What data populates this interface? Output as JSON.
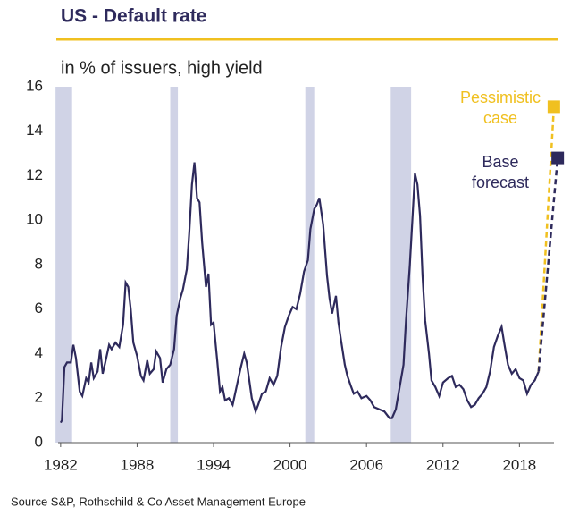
{
  "chart_data": {
    "type": "line",
    "title": "US - Default rate",
    "subtitle": "in % of issuers, high yield",
    "source": "Source S&P, Rothschild & Co Asset Management  Europe",
    "xlim": [
      1981.8,
      2021.2
    ],
    "xticks": [
      1982,
      1988,
      1994,
      2000,
      2006,
      2012,
      2018
    ],
    "ylim": [
      0,
      16
    ],
    "yticks": [
      0,
      2,
      4,
      6,
      8,
      10,
      12,
      14,
      16
    ],
    "recessions": [
      [
        1981.6,
        1982.9
      ],
      [
        1990.6,
        1991.2
      ],
      [
        2001.2,
        2001.9
      ],
      [
        2007.9,
        2009.5
      ]
    ],
    "recession_color": "#d0d3e6",
    "series": [
      {
        "color": "#2e2a5c",
        "dashed": false,
        "x": [
          1982.0,
          1982.1,
          1982.3,
          1982.5,
          1982.8,
          1983.0,
          1983.2,
          1983.5,
          1983.7,
          1984.0,
          1984.2,
          1984.4,
          1984.6,
          1984.9,
          1985.1,
          1985.3,
          1985.5,
          1985.8,
          1986.0,
          1986.3,
          1986.6,
          1986.9,
          1987.1,
          1987.3,
          1987.5,
          1987.7,
          1988.0,
          1988.3,
          1988.5,
          1988.8,
          1989.0,
          1989.3,
          1989.5,
          1989.8,
          1990.0,
          1990.3,
          1990.6,
          1990.9,
          1991.1,
          1991.4,
          1991.6,
          1991.9,
          1992.1,
          1992.3,
          1992.5,
          1992.7,
          1992.9,
          1993.1,
          1993.4,
          1993.6,
          1993.8,
          1994.0,
          1994.3,
          1994.5,
          1994.7,
          1994.9,
          1995.2,
          1995.5,
          1995.8,
          1996.1,
          1996.4,
          1996.6,
          1996.8,
          1997.0,
          1997.3,
          1997.5,
          1997.8,
          1998.1,
          1998.4,
          1998.7,
          1999.0,
          1999.3,
          1999.6,
          1999.9,
          2000.2,
          2000.5,
          2000.8,
          2001.1,
          2001.4,
          2001.6,
          2001.9,
          2002.1,
          2002.3,
          2002.6,
          2002.9,
          2003.1,
          2003.3,
          2003.6,
          2003.8,
          2004.0,
          2004.3,
          2004.5,
          2004.8,
          2005.0,
          2005.3,
          2005.6,
          2006.0,
          2006.3,
          2006.6,
          2007.0,
          2007.4,
          2007.8,
          2008.0,
          2008.3,
          2008.6,
          2008.9,
          2009.1,
          2009.4,
          2009.6,
          2009.8,
          2010.0,
          2010.2,
          2010.4,
          2010.6,
          2010.9,
          2011.1,
          2011.4,
          2011.7,
          2012.0,
          2012.4,
          2012.7,
          2013.0,
          2013.3,
          2013.6,
          2013.9,
          2014.2,
          2014.5,
          2014.8,
          2015.1,
          2015.4,
          2015.7,
          2016.0,
          2016.3,
          2016.6,
          2016.8,
          2017.1,
          2017.4,
          2017.7,
          2018.0,
          2018.3,
          2018.6,
          2018.9,
          2019.2,
          2019.5
        ],
        "values": [
          0.9,
          1.0,
          3.4,
          3.6,
          3.6,
          4.4,
          3.8,
          2.3,
          2.1,
          2.9,
          2.7,
          3.6,
          2.9,
          3.2,
          4.2,
          3.1,
          3.6,
          4.4,
          4.2,
          4.5,
          4.3,
          5.3,
          7.2,
          7.0,
          6.0,
          4.5,
          3.9,
          3.0,
          2.8,
          3.7,
          3.1,
          3.3,
          4.1,
          3.8,
          2.7,
          3.3,
          3.5,
          4.2,
          5.7,
          6.5,
          6.9,
          7.8,
          9.5,
          11.6,
          12.6,
          11.0,
          10.8,
          9.0,
          7.0,
          7.6,
          5.3,
          5.4,
          3.6,
          2.3,
          2.5,
          1.9,
          2.0,
          1.7,
          2.5,
          3.3,
          4.0,
          3.6,
          2.8,
          2.0,
          1.4,
          1.7,
          2.2,
          2.3,
          2.9,
          2.6,
          3.0,
          4.3,
          5.2,
          5.7,
          6.1,
          6.0,
          6.7,
          7.7,
          8.2,
          9.6,
          10.5,
          10.7,
          11.0,
          9.8,
          7.5,
          6.5,
          5.8,
          6.6,
          5.4,
          4.6,
          3.5,
          3.0,
          2.5,
          2.2,
          2.3,
          2.0,
          2.1,
          1.9,
          1.6,
          1.5,
          1.4,
          1.1,
          1.1,
          1.5,
          2.5,
          3.5,
          5.5,
          8.0,
          10.0,
          12.1,
          11.6,
          10.2,
          7.5,
          5.5,
          4.0,
          2.8,
          2.5,
          2.1,
          2.7,
          2.9,
          3.0,
          2.5,
          2.6,
          2.4,
          1.9,
          1.6,
          1.7,
          2.0,
          2.2,
          2.5,
          3.2,
          4.3,
          4.8,
          5.2,
          4.5,
          3.5,
          3.1,
          3.3,
          2.9,
          2.8,
          2.2,
          2.6,
          2.8,
          3.2
        ]
      },
      {
        "color": "#f0c020",
        "dashed": true,
        "marker": true,
        "x": [
          2019.5,
          2020.7
        ],
        "values": [
          3.2,
          15.1
        ]
      },
      {
        "color": "#2e2a5c",
        "dashed": true,
        "marker": true,
        "x": [
          2019.5,
          2021.0
        ],
        "values": [
          3.2,
          12.8
        ]
      }
    ],
    "annotations": [
      {
        "lines": [
          "Pessimistic",
          "case"
        ],
        "color": "#f0c020"
      },
      {
        "lines": [
          "Base",
          "forecast"
        ],
        "color": "#2e2a5c"
      }
    ]
  }
}
